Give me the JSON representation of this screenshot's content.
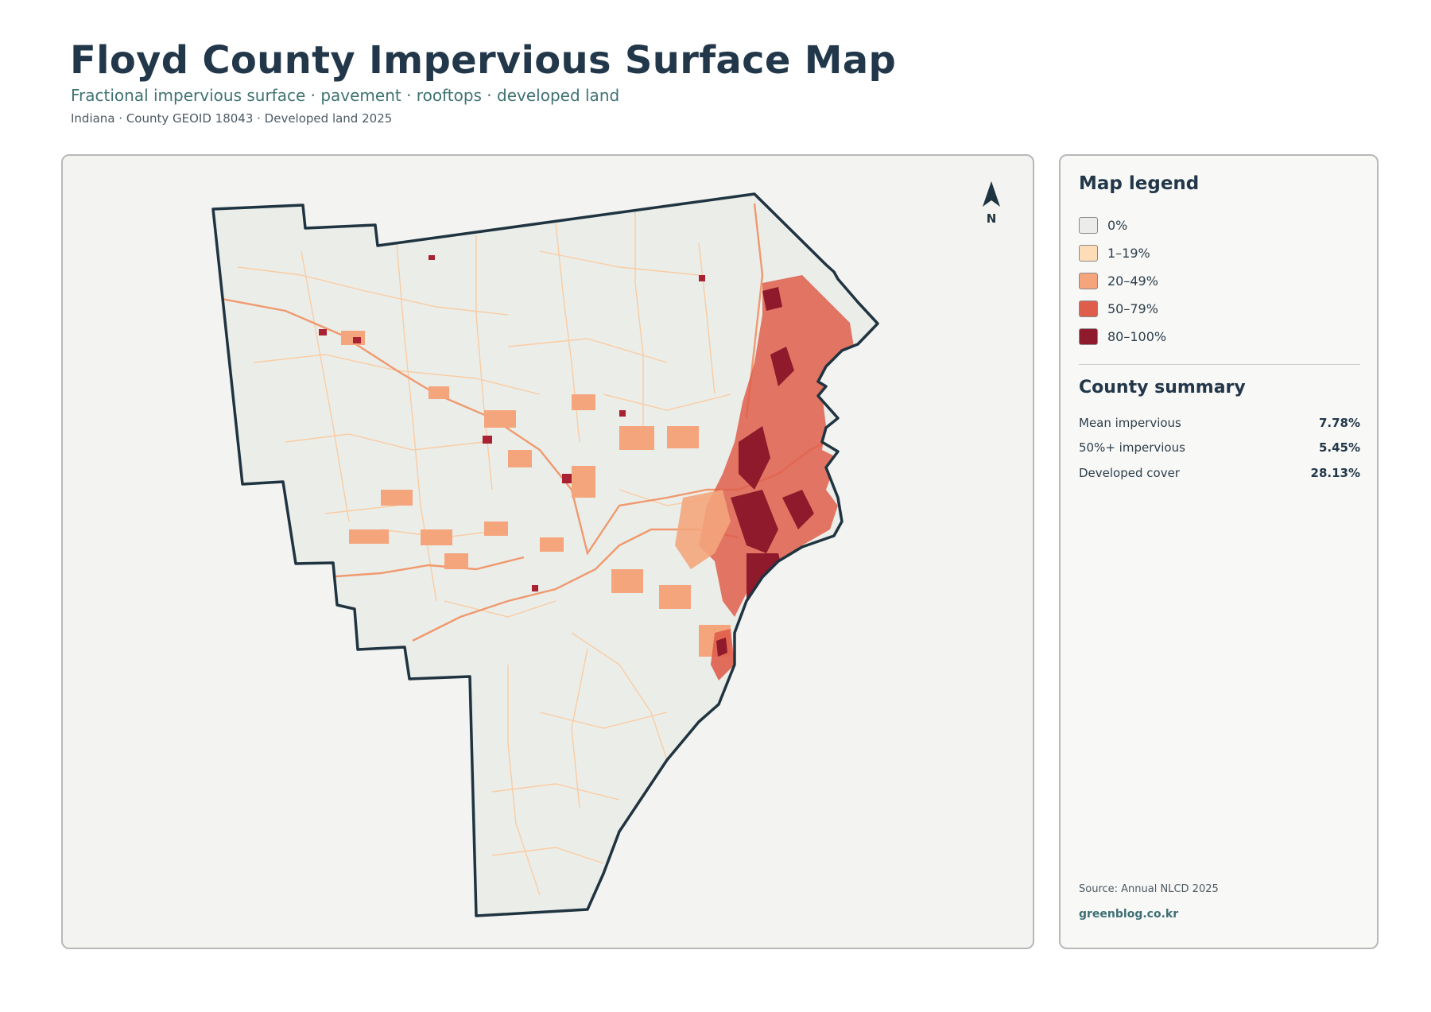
{
  "header": {
    "title": "Floyd County Impervious Surface Map",
    "subtitle": "Fractional impervious surface · pavement · rooftops · developed land",
    "meta": "Indiana · County GEOID 18043 · Developed land 2025"
  },
  "map": {
    "north_label": "N",
    "boundary_color": "#1f3440",
    "land_color": "#ebede9"
  },
  "legend": {
    "title": "Map legend",
    "items": [
      {
        "label": "0%",
        "color": "#ececea"
      },
      {
        "label": "1–19%",
        "color": "#fddcb8"
      },
      {
        "label": "20–49%",
        "color": "#f4a57c"
      },
      {
        "label": "50–79%",
        "color": "#df5e4b"
      },
      {
        "label": "80–100%",
        "color": "#8e1a2c"
      }
    ]
  },
  "summary": {
    "title": "County summary",
    "stats": [
      {
        "label": "Mean impervious",
        "value": "7.78%"
      },
      {
        "label": "50%+ impervious",
        "value": "5.45%"
      },
      {
        "label": "Developed cover",
        "value": "28.13%"
      }
    ]
  },
  "footer": {
    "source": "Source: Annual NLCD 2025",
    "credit": "greenblog.co.kr"
  }
}
